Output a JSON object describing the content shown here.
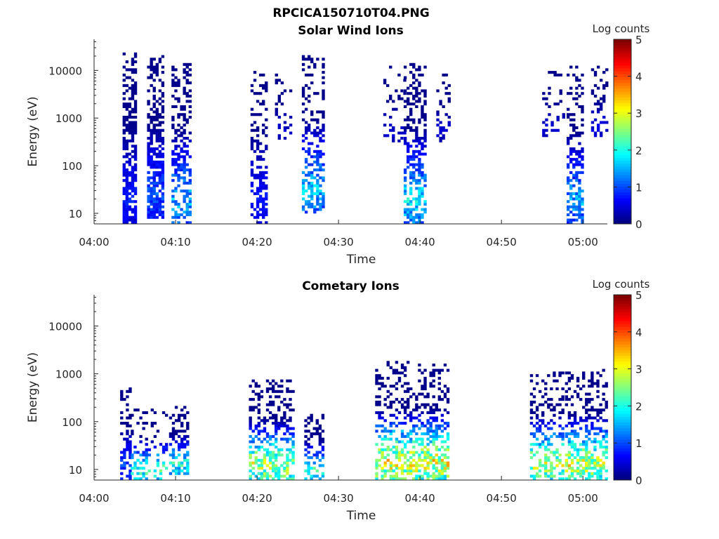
{
  "figure_title": "RPCICA150710T04.PNG",
  "chart_data": [
    {
      "type": "heatmap",
      "title": "Solar Wind Ions",
      "xlabel": "Time",
      "ylabel": "Energy (eV)",
      "x_ticks": [
        "04:00",
        "04:10",
        "04:20",
        "04:30",
        "04:40",
        "04:50",
        "05:00"
      ],
      "y_ticks": [
        "10",
        "100",
        "1000",
        "10000"
      ],
      "yscale": "log",
      "xlim_minutes": [
        0,
        63
      ],
      "ylim": [
        6,
        45000
      ],
      "colorbar": {
        "label": "Log counts",
        "ticks": [
          "0",
          "1",
          "2",
          "3",
          "4",
          "5"
        ],
        "range": [
          0,
          5
        ],
        "colormap": "jet"
      },
      "clusters": [
        {
          "t_start_min": 3.5,
          "t_end_min": 5.2,
          "e_min": 6,
          "e_max": 25000,
          "level_max": 0.9,
          "density": 0.85
        },
        {
          "t_start_min": 6.5,
          "t_end_min": 8.5,
          "e_min": 8,
          "e_max": 20000,
          "level_max": 1.3,
          "density": 0.85
        },
        {
          "t_start_min": 9.5,
          "t_end_min": 11.8,
          "e_min": 6,
          "e_max": 15000,
          "level_max": 1.9,
          "density": 0.55
        },
        {
          "t_start_min": 19.2,
          "t_end_min": 21.2,
          "e_min": 6,
          "e_max": 15000,
          "level_max": 0.9,
          "density": 0.5
        },
        {
          "t_start_min": 22.2,
          "t_end_min": 24.2,
          "e_min": 300,
          "e_max": 9000,
          "level_max": 0.5,
          "density": 0.25
        },
        {
          "t_start_min": 25.5,
          "t_end_min": 28.0,
          "e_min": 10,
          "e_max": 22000,
          "level_max": 2.0,
          "density": 0.55
        },
        {
          "t_start_min": 35.5,
          "t_end_min": 38.0,
          "e_min": 300,
          "e_max": 12000,
          "level_max": 0.5,
          "density": 0.25
        },
        {
          "t_start_min": 38.0,
          "t_end_min": 40.8,
          "e_min": 6,
          "e_max": 15000,
          "level_max": 2.2,
          "density": 0.6
        },
        {
          "t_start_min": 42.0,
          "t_end_min": 43.5,
          "e_min": 300,
          "e_max": 10000,
          "level_max": 0.5,
          "density": 0.3
        },
        {
          "t_start_min": 55.0,
          "t_end_min": 57.5,
          "e_min": 400,
          "e_max": 10000,
          "level_max": 0.5,
          "density": 0.2
        },
        {
          "t_start_min": 58.0,
          "t_end_min": 60.0,
          "e_min": 6,
          "e_max": 12000,
          "level_max": 1.8,
          "density": 0.6
        },
        {
          "t_start_min": 61.0,
          "t_end_min": 63.0,
          "e_min": 400,
          "e_max": 12000,
          "level_max": 0.6,
          "density": 0.35
        }
      ]
    },
    {
      "type": "heatmap",
      "title": "Cometary Ions",
      "xlabel": "Time",
      "ylabel": "Energy (eV)",
      "x_ticks": [
        "04:00",
        "04:10",
        "04:20",
        "04:30",
        "04:40",
        "04:50",
        "05:00"
      ],
      "y_ticks": [
        "10",
        "100",
        "1000",
        "10000"
      ],
      "yscale": "log",
      "xlim_minutes": [
        0,
        63
      ],
      "ylim": [
        6,
        45000
      ],
      "colorbar": {
        "label": "Log counts",
        "ticks": [
          "0",
          "1",
          "2",
          "3",
          "4",
          "5"
        ],
        "range": [
          0,
          5
        ],
        "colormap": "jet"
      },
      "clusters": [
        {
          "t_start_min": 3.2,
          "t_end_min": 4.5,
          "e_min": 6,
          "e_max": 500,
          "level_max": 1.2,
          "density": 0.55
        },
        {
          "t_start_min": 4.5,
          "t_end_min": 8.8,
          "e_min": 6,
          "e_max": 180,
          "level_max": 2.8,
          "density": 0.35
        },
        {
          "t_start_min": 9.2,
          "t_end_min": 11.6,
          "e_min": 8,
          "e_max": 200,
          "level_max": 2.6,
          "density": 0.6
        },
        {
          "t_start_min": 19.0,
          "t_end_min": 24.5,
          "e_min": 6,
          "e_max": 800,
          "level_max": 3.6,
          "density": 0.55
        },
        {
          "t_start_min": 25.8,
          "t_end_min": 28.0,
          "e_min": 6,
          "e_max": 150,
          "level_max": 2.6,
          "density": 0.5
        },
        {
          "t_start_min": 34.5,
          "t_end_min": 43.5,
          "e_min": 6,
          "e_max": 1800,
          "level_max": 3.9,
          "density": 0.55
        },
        {
          "t_start_min": 53.5,
          "t_end_min": 57.5,
          "e_min": 6,
          "e_max": 1100,
          "level_max": 3.6,
          "density": 0.5
        },
        {
          "t_start_min": 57.8,
          "t_end_min": 63.0,
          "e_min": 6,
          "e_max": 1200,
          "level_max": 3.7,
          "density": 0.55
        }
      ]
    }
  ]
}
